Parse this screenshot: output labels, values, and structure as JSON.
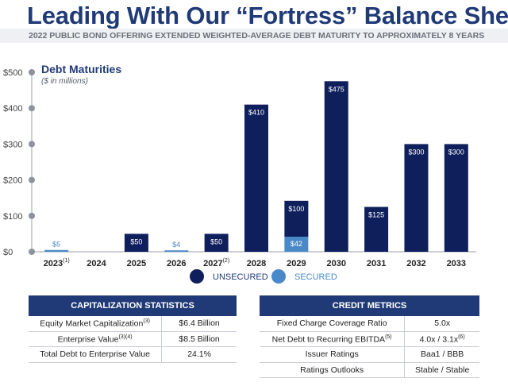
{
  "header": {
    "title": "Leading With Our “Fortress” Balance Sheet",
    "subtitle": "2022 PUBLIC BOND OFFERING EXTENDED WEIGHTED-AVERAGE DEBT MATURITY TO APPROXIMATELY 8 YEARS"
  },
  "chart_data": {
    "type": "bar",
    "title": "Debt Maturities",
    "subtitle": "($ in millions)",
    "categories": [
      "2023",
      "2024",
      "2025",
      "2026",
      "2027",
      "2028",
      "2029",
      "2030",
      "2031",
      "2032",
      "2033"
    ],
    "category_superscripts": [
      "(1)",
      "",
      "",
      "",
      "(2)",
      "",
      "",
      "",
      "",
      "",
      ""
    ],
    "series": [
      {
        "name": "SECURED",
        "color": "#4a89c8",
        "values": [
          5,
          0,
          0,
          4,
          0,
          0,
          42,
          0,
          0,
          0,
          0
        ]
      },
      {
        "name": "UNSECURED",
        "color": "#0f1f5c",
        "values": [
          0,
          0,
          50,
          0,
          50,
          410,
          100,
          475,
          125,
          300,
          300
        ]
      }
    ],
    "data_labels": {
      "secured": [
        "$5",
        "",
        "",
        "$4",
        "",
        "",
        "$42",
        "",
        "",
        "",
        ""
      ],
      "unsecured": [
        "",
        "",
        "$50",
        "",
        "$50",
        "$410",
        "$100",
        "$475",
        "$125",
        "$300",
        "$300"
      ]
    },
    "ylim": [
      0,
      500
    ],
    "yticks": [
      0,
      100,
      200,
      300,
      400,
      500
    ],
    "ytick_labels": [
      "$0",
      "$100",
      "$200",
      "$300",
      "$400",
      "$500"
    ],
    "stacked": true,
    "legend_placement": "bottom-center",
    "legend": [
      "UNSECURED",
      "SECURED"
    ]
  },
  "capitalization": {
    "title": "CAPITALIZATION STATISTICS",
    "rows": [
      {
        "label": "Equity Market Capitalization",
        "sup": "(3)",
        "value": "$6.4 Billion"
      },
      {
        "label": "Enterprise Value",
        "sup": "(3)(4)",
        "value": "$8.5 Billion"
      },
      {
        "label": "Total Debt to Enterprise Value",
        "sup": "",
        "value": "24.1%"
      }
    ]
  },
  "credit": {
    "title": "CREDIT METRICS",
    "rows": [
      {
        "label": "Fixed Charge Coverage Ratio",
        "sup": "",
        "value": "5.0x",
        "value_sup": ""
      },
      {
        "label": "Net Debt to Recurring EBITDA",
        "sup": "(5)",
        "value": "4.0x / 3.1x",
        "value_sup": "(6)"
      },
      {
        "label": "Issuer Ratings",
        "sup": "",
        "value": "Baa1 / BBB",
        "value_sup": ""
      },
      {
        "label": "Ratings Outlooks",
        "sup": "",
        "value": "Stable / Stable",
        "value_sup": ""
      }
    ]
  }
}
